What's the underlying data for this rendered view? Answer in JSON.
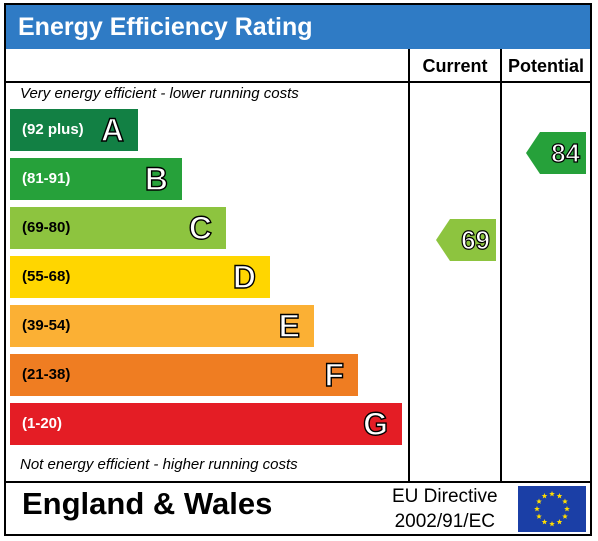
{
  "title": "Energy Efficiency Rating",
  "columns": {
    "current": "Current",
    "potential": "Potential"
  },
  "captions": {
    "top": "Very energy efficient - lower running costs",
    "bottom": "Not energy efficient - higher running costs"
  },
  "footer": {
    "region": "England & Wales",
    "directive_line1": "EU Directive",
    "directive_line2": "2002/91/EC"
  },
  "colors": {
    "title_bar": "#2f7bc5",
    "A": "#128044",
    "B": "#26a13a",
    "C": "#8dc43f",
    "D": "#ffd600",
    "E": "#fbb034",
    "F": "#ef7d22",
    "G": "#e41d25",
    "flag_blue": "#1b3fa6",
    "flag_star": "#ffdd00"
  },
  "chart_data": {
    "type": "bar",
    "categories": [
      "A",
      "B",
      "C",
      "D",
      "E",
      "F",
      "G"
    ],
    "ranges": [
      "(92 plus)",
      "(81-91)",
      "(69-80)",
      "(55-68)",
      "(39-54)",
      "(21-38)",
      "(1-20)"
    ],
    "series": [
      {
        "name": "Current",
        "value": 69,
        "band": "C"
      },
      {
        "name": "Potential",
        "value": 84,
        "band": "B"
      }
    ]
  }
}
